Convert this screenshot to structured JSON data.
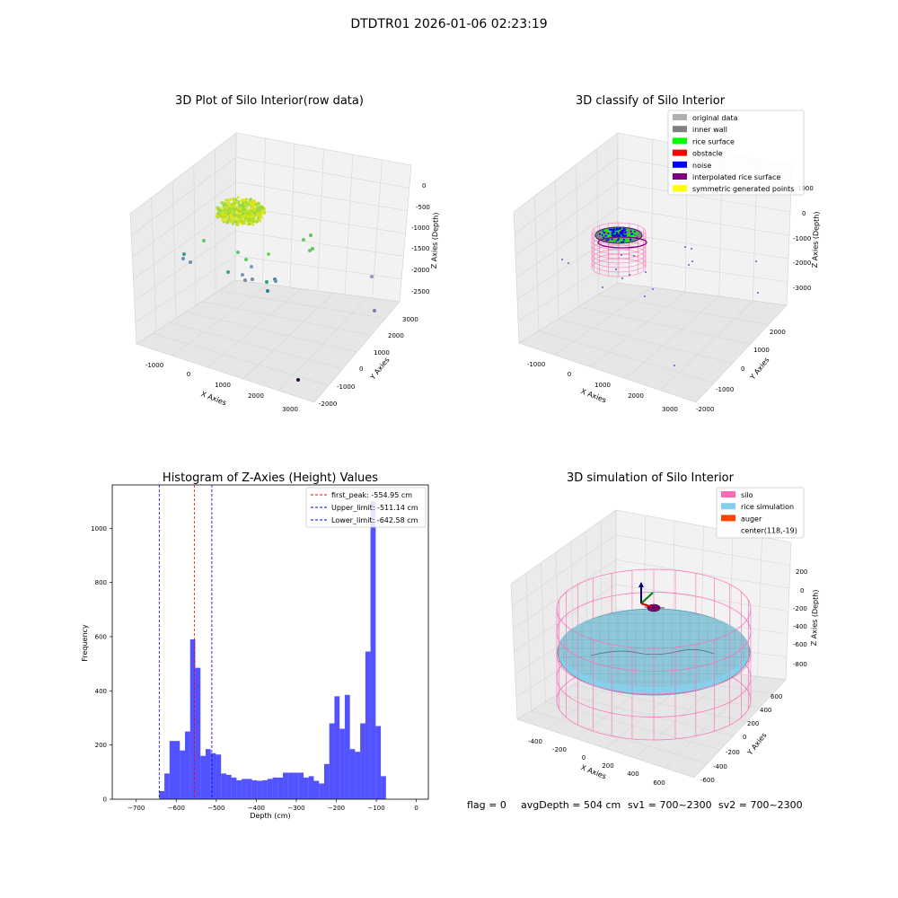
{
  "suptitle": "DTDTR01 2026-01-06 02:23:19",
  "panel1": {
    "title": "3D Plot of Silo Interior(row data)",
    "xlabel": "X Axies",
    "ylabel": "Y Axies",
    "zlabel": "Z Axies (Depth)",
    "xticks": [
      "-1000",
      "0",
      "1000",
      "2000",
      "3000"
    ],
    "yticks": [
      "-2000",
      "-1000",
      "0",
      "1000",
      "2000",
      "3000"
    ],
    "zticks": [
      "0",
      "-500",
      "-1000",
      "-1500",
      "-2000",
      "-2500"
    ]
  },
  "panel2": {
    "title": "3D classify of Silo Interior",
    "xlabel": "X Axies",
    "ylabel": "Y Axies",
    "zlabel": "Z Axies (Depth)",
    "xticks": [
      "-1000",
      "0",
      "1000",
      "2000",
      "3000"
    ],
    "yticks": [
      "-2000",
      "-1000",
      "0",
      "1000",
      "2000"
    ],
    "zticks": [
      "1000",
      "0",
      "-1000",
      "-2000",
      "-3000"
    ],
    "legend": [
      {
        "label": "original data",
        "color": "#b0b0b0"
      },
      {
        "label": "inner wall",
        "color": "#808080"
      },
      {
        "label": "rice surface",
        "color": "#00ff00"
      },
      {
        "label": "obstacle",
        "color": "#ff0000"
      },
      {
        "label": "noise",
        "color": "#0000ff"
      },
      {
        "label": "interpolated rice surface",
        "color": "#800080"
      },
      {
        "label": "symmetric generated points",
        "color": "#ffff00"
      }
    ]
  },
  "panel3": {
    "title": "Histogram of Z-Axies (Height) Values",
    "xlabel": "Depth (cm)",
    "ylabel": "Frequency",
    "legend": [
      {
        "label": "first_peak: -554.95 cm",
        "color": "#ff0000"
      },
      {
        "label": "Upper_limit: -511.14 cm",
        "color": "#0000ff"
      },
      {
        "label": "Lower_limit: -642.58 cm",
        "color": "#0000ff"
      }
    ]
  },
  "panel4": {
    "title": "3D simulation of Silo Interior",
    "xlabel": "X Axies",
    "ylabel": "Y Axies",
    "zlabel": "Z Axies (Depth)",
    "xticks": [
      "-400",
      "-200",
      "0",
      "200",
      "400",
      "600"
    ],
    "yticks": [
      "-600",
      "-400",
      "-200",
      "0",
      "200",
      "400",
      "600"
    ],
    "zticks": [
      "200",
      "0",
      "-200",
      "-400",
      "-600",
      "-800"
    ],
    "legend": [
      {
        "label": "silo",
        "color": "#ff69b4"
      },
      {
        "label": "rice simulation",
        "color": "#87ceeb"
      },
      {
        "label": "auger",
        "color": "#ff4500"
      },
      {
        "label": "center(118,-19)",
        "color": ""
      }
    ]
  },
  "status": {
    "flag": "flag = 0",
    "avg": "avgDepth = 504 cm",
    "sv1": "sv1 = 700~2300",
    "sv2": "sv2 = 700~2300"
  },
  "chart_data": [
    {
      "type": "histogram",
      "title": "Histogram of Z-Axies (Height) Values",
      "xlabel": "Depth (cm)",
      "ylabel": "Frequency",
      "xlim": [
        -760,
        30
      ],
      "ylim": [
        0,
        1160
      ],
      "xticks": [
        -700,
        -600,
        -500,
        -400,
        -300,
        -200,
        -100,
        0
      ],
      "yticks": [
        0,
        200,
        400,
        600,
        800,
        1000
      ],
      "bin_start": -642.58,
      "bin_width": 12.88,
      "values": [
        30,
        95,
        215,
        215,
        180,
        250,
        590,
        485,
        160,
        185,
        170,
        165,
        95,
        90,
        80,
        70,
        75,
        75,
        70,
        68,
        70,
        75,
        80,
        80,
        98,
        98,
        98,
        98,
        80,
        85,
        68,
        58,
        130,
        280,
        380,
        260,
        385,
        185,
        175,
        280,
        545,
        1100,
        270,
        85
      ],
      "color": "#0000ff",
      "vlines": [
        {
          "name": "first_peak: -554.95 cm",
          "x": -554.95,
          "color": "#ff0000"
        },
        {
          "name": "Upper_limit: -511.14 cm",
          "x": -511.14,
          "color": "#0000ff"
        },
        {
          "name": "Lower_limit: -642.58 cm",
          "x": -642.58,
          "color": "#0000ff"
        }
      ],
      "legend": "top-right"
    },
    {
      "type": "scatter",
      "title": "3D Plot of Silo Interior(row data)",
      "projection": "3d"
    },
    {
      "type": "scatter",
      "title": "3D classify of Silo Interior",
      "projection": "3d"
    },
    {
      "type": "surface",
      "title": "3D simulation of Silo Interior",
      "projection": "3d"
    }
  ]
}
